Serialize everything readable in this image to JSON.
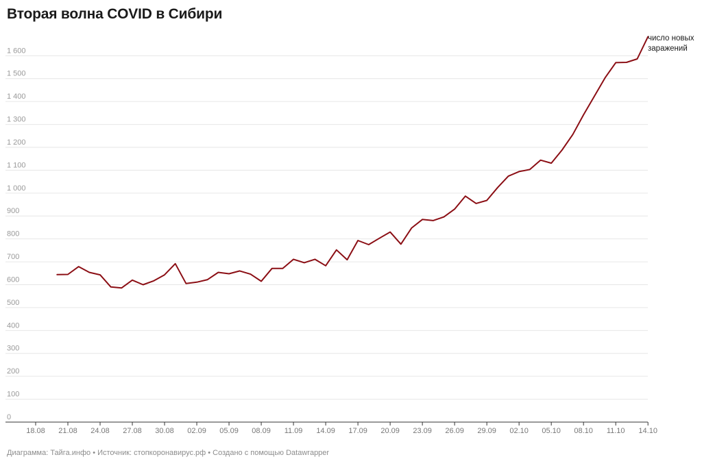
{
  "title": "Вторая волна COVID в Сибири",
  "footer": "Диаграмма: Тайга.инфо • Источник: стопкоронавирус.рф • Создано с помощью Datawrapper",
  "colors": {
    "line": "#8b0e14",
    "grid": "#e6e6e6",
    "axis": "#333333",
    "tick_text": "#999999"
  },
  "chart_data": {
    "type": "line",
    "title": "Вторая волна COVID в Сибири",
    "xlabel": "",
    "ylabel": "",
    "ylim": [
      0,
      1650
    ],
    "y_ticks": [
      {
        "value": 0,
        "label": "0"
      },
      {
        "value": 100,
        "label": "100"
      },
      {
        "value": 200,
        "label": "200"
      },
      {
        "value": 300,
        "label": "300"
      },
      {
        "value": 400,
        "label": "400"
      },
      {
        "value": 500,
        "label": "500"
      },
      {
        "value": 600,
        "label": "600"
      },
      {
        "value": 700,
        "label": "700"
      },
      {
        "value": 800,
        "label": "800"
      },
      {
        "value": 900,
        "label": "900"
      },
      {
        "value": 1000,
        "label": "1 000"
      },
      {
        "value": 1100,
        "label": "1 100"
      },
      {
        "value": 1200,
        "label": "1 200"
      },
      {
        "value": 1300,
        "label": "1 300"
      },
      {
        "value": 1400,
        "label": "1 400"
      },
      {
        "value": 1500,
        "label": "1 500"
      },
      {
        "value": 1600,
        "label": "1 600"
      }
    ],
    "x_ticks": [
      "18.08",
      "21.08",
      "24.08",
      "27.08",
      "30.08",
      "02.09",
      "05.09",
      "08.09",
      "11.09",
      "14.09",
      "17.09",
      "20.09",
      "23.09",
      "26.09",
      "29.09",
      "02.10",
      "05.10",
      "08.10",
      "11.10",
      "14.10"
    ],
    "grid": true,
    "series": [
      {
        "name": "число новых заражений",
        "x": [
          "20.08",
          "21.08",
          "22.08",
          "23.08",
          "24.08",
          "25.08",
          "26.08",
          "27.08",
          "28.08",
          "29.08",
          "30.08",
          "31.08",
          "01.09",
          "02.09",
          "03.09",
          "04.09",
          "05.09",
          "06.09",
          "07.09",
          "08.09",
          "09.09",
          "10.09",
          "11.09",
          "12.09",
          "13.09",
          "14.09",
          "15.09",
          "16.09",
          "17.09",
          "18.09",
          "19.09",
          "20.09",
          "21.09",
          "22.09",
          "23.09",
          "24.09",
          "25.09",
          "26.09",
          "27.09",
          "28.09",
          "29.09",
          "30.09",
          "01.10",
          "02.10",
          "03.10",
          "04.10",
          "05.10",
          "06.10",
          "07.10",
          "08.10",
          "09.10",
          "10.10",
          "11.10",
          "12.10",
          "13.10",
          "14.10"
        ],
        "values": [
          644,
          645,
          679,
          654,
          643,
          590,
          586,
          620,
          600,
          617,
          643,
          692,
          605,
          611,
          622,
          654,
          648,
          660,
          646,
          615,
          671,
          671,
          711,
          696,
          711,
          683,
          752,
          709,
          793,
          775,
          803,
          830,
          777,
          848,
          885,
          880,
          896,
          930,
          987,
          955,
          968,
          1024,
          1074,
          1094,
          1103,
          1144,
          1131,
          1188,
          1256,
          1342,
          1422,
          1503,
          1570,
          1571,
          1586,
          1683
        ]
      }
    ],
    "legend": "label at end of line, right"
  }
}
